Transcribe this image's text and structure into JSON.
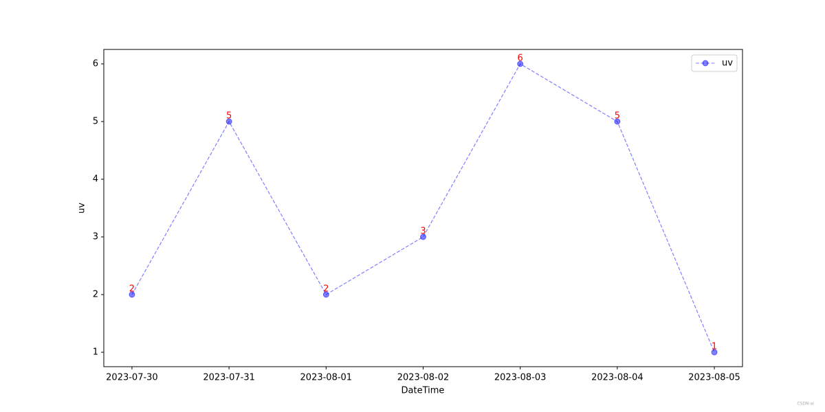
{
  "chart_data": {
    "type": "line",
    "x_label": "DateTime",
    "y_label": "uv",
    "x": [
      "2023-07-30",
      "2023-07-31",
      "2023-08-01",
      "2023-08-02",
      "2023-08-03",
      "2023-08-04",
      "2023-08-05"
    ],
    "series": [
      {
        "name": "uv",
        "color": "#0000ff",
        "values": [
          2,
          5,
          2,
          3,
          6,
          5,
          1
        ]
      }
    ],
    "data_label_color": "#ff0000",
    "ylim": [
      0.75,
      6.25
    ],
    "yticks": [
      1,
      2,
      3,
      4,
      5,
      6
    ],
    "legend": "upper right",
    "grid": false
  },
  "watermark": "CSDN-ai"
}
